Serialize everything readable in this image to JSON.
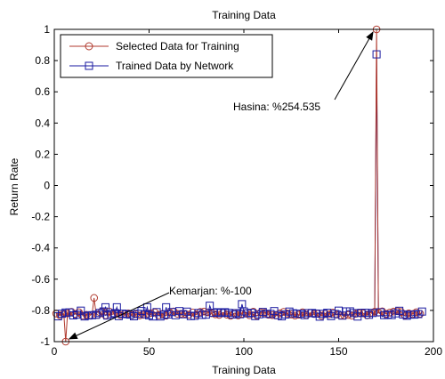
{
  "chart_data": {
    "type": "line",
    "title": "Training Data",
    "xlabel": "Training Data",
    "ylabel": "Return Rate",
    "xlim": [
      0,
      200
    ],
    "ylim": [
      -1,
      1
    ],
    "xticks": [
      0,
      50,
      100,
      150,
      200
    ],
    "yticks": [
      -1,
      -0.8,
      -0.6,
      -0.4,
      -0.2,
      0,
      0.2,
      0.4,
      0.6,
      0.8,
      1
    ],
    "grid": false,
    "legend_position": "top-left",
    "n_points": 194,
    "baseline": -0.82,
    "series": [
      {
        "name": "Selected Data for Training",
        "marker": "circle",
        "color": "#b03a2e",
        "spikes": [
          {
            "x": 6,
            "y": -1.0
          },
          {
            "x": 21,
            "y": -0.72
          },
          {
            "x": 170,
            "y": 1.0
          }
        ]
      },
      {
        "name": "Trained Data by Network",
        "marker": "square",
        "color": "#1a1aa0",
        "spikes": [
          {
            "x": 27,
            "y": -0.78
          },
          {
            "x": 33,
            "y": -0.78
          },
          {
            "x": 49,
            "y": -0.78
          },
          {
            "x": 59,
            "y": -0.78
          },
          {
            "x": 82,
            "y": -0.77
          },
          {
            "x": 99,
            "y": -0.76
          },
          {
            "x": 170,
            "y": 0.84
          }
        ]
      }
    ],
    "annotations": [
      {
        "text": "Hasina: %254.535",
        "x": 170,
        "y": 1.0
      },
      {
        "text": "Kemarjan: %-100",
        "x": 6,
        "y": -1.0
      }
    ]
  }
}
